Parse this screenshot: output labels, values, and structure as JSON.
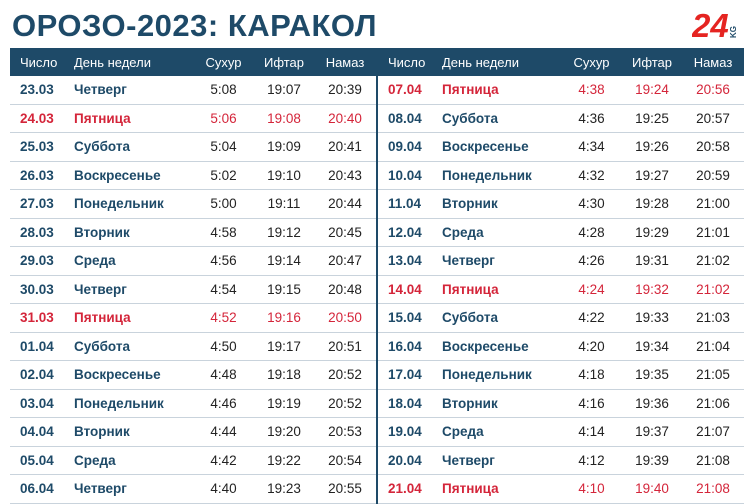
{
  "title": "ОРОЗО-2023: КАРАКОЛ",
  "logo": {
    "main": "24",
    "sub": "KG",
    "colors": {
      "red": "#e52421",
      "blue": "#1e4a68"
    }
  },
  "columns": {
    "date": "Число",
    "day": "День недели",
    "suhur": "Сухур",
    "iftar": "Ифтар",
    "namaz": "Намаз"
  },
  "colors": {
    "header": "#1e4a68",
    "friday": "#d4253a"
  },
  "left_rows": [
    {
      "date": "23.03",
      "day": "Четверг",
      "suhur": "5:08",
      "iftar": "19:07",
      "namaz": "20:39",
      "friday": false
    },
    {
      "date": "24.03",
      "day": "Пятница",
      "suhur": "5:06",
      "iftar": "19:08",
      "namaz": "20:40",
      "friday": true
    },
    {
      "date": "25.03",
      "day": "Суббота",
      "suhur": "5:04",
      "iftar": "19:09",
      "namaz": "20:41",
      "friday": false
    },
    {
      "date": "26.03",
      "day": "Воскресенье",
      "suhur": "5:02",
      "iftar": "19:10",
      "namaz": "20:43",
      "friday": false
    },
    {
      "date": "27.03",
      "day": "Понедельник",
      "suhur": "5:00",
      "iftar": "19:11",
      "namaz": "20:44",
      "friday": false
    },
    {
      "date": "28.03",
      "day": "Вторник",
      "suhur": "4:58",
      "iftar": "19:12",
      "namaz": "20:45",
      "friday": false
    },
    {
      "date": "29.03",
      "day": "Среда",
      "suhur": "4:56",
      "iftar": "19:14",
      "namaz": "20:47",
      "friday": false
    },
    {
      "date": "30.03",
      "day": "Четверг",
      "suhur": "4:54",
      "iftar": "19:15",
      "namaz": "20:48",
      "friday": false
    },
    {
      "date": "31.03",
      "day": "Пятница",
      "suhur": "4:52",
      "iftar": "19:16",
      "namaz": "20:50",
      "friday": true
    },
    {
      "date": "01.04",
      "day": "Суббота",
      "suhur": "4:50",
      "iftar": "19:17",
      "namaz": "20:51",
      "friday": false
    },
    {
      "date": "02.04",
      "day": "Воскресенье",
      "suhur": "4:48",
      "iftar": "19:18",
      "namaz": "20:52",
      "friday": false
    },
    {
      "date": "03.04",
      "day": "Понедельник",
      "suhur": "4:46",
      "iftar": "19:19",
      "namaz": "20:52",
      "friday": false
    },
    {
      "date": "04.04",
      "day": "Вторник",
      "suhur": "4:44",
      "iftar": "19:20",
      "namaz": "20:53",
      "friday": false
    },
    {
      "date": "05.04",
      "day": "Среда",
      "suhur": "4:42",
      "iftar": "19:22",
      "namaz": "20:54",
      "friday": false
    },
    {
      "date": "06.04",
      "day": "Четверг",
      "suhur": "4:40",
      "iftar": "19:23",
      "namaz": "20:55",
      "friday": false
    }
  ],
  "right_rows": [
    {
      "date": "07.04",
      "day": "Пятница",
      "suhur": "4:38",
      "iftar": "19:24",
      "namaz": "20:56",
      "friday": true
    },
    {
      "date": "08.04",
      "day": "Суббота",
      "suhur": "4:36",
      "iftar": "19:25",
      "namaz": "20:57",
      "friday": false
    },
    {
      "date": "09.04",
      "day": "Воскресенье",
      "suhur": "4:34",
      "iftar": "19:26",
      "namaz": "20:58",
      "friday": false
    },
    {
      "date": "10.04",
      "day": "Понедельник",
      "suhur": "4:32",
      "iftar": "19:27",
      "namaz": "20:59",
      "friday": false
    },
    {
      "date": "11.04",
      "day": "Вторник",
      "suhur": "4:30",
      "iftar": "19:28",
      "namaz": "21:00",
      "friday": false
    },
    {
      "date": "12.04",
      "day": "Среда",
      "suhur": "4:28",
      "iftar": "19:29",
      "namaz": "21:01",
      "friday": false
    },
    {
      "date": "13.04",
      "day": "Четверг",
      "suhur": "4:26",
      "iftar": "19:31",
      "namaz": "21:02",
      "friday": false
    },
    {
      "date": "14.04",
      "day": "Пятница",
      "suhur": "4:24",
      "iftar": "19:32",
      "namaz": "21:02",
      "friday": true
    },
    {
      "date": "15.04",
      "day": "Суббота",
      "suhur": "4:22",
      "iftar": "19:33",
      "namaz": "21:03",
      "friday": false
    },
    {
      "date": "16.04",
      "day": "Воскресенье",
      "suhur": "4:20",
      "iftar": "19:34",
      "namaz": "21:04",
      "friday": false
    },
    {
      "date": "17.04",
      "day": "Понедельник",
      "suhur": "4:18",
      "iftar": "19:35",
      "namaz": "21:05",
      "friday": false
    },
    {
      "date": "18.04",
      "day": "Вторник",
      "suhur": "4:16",
      "iftar": "19:36",
      "namaz": "21:06",
      "friday": false
    },
    {
      "date": "19.04",
      "day": "Среда",
      "suhur": "4:14",
      "iftar": "19:37",
      "namaz": "21:07",
      "friday": false
    },
    {
      "date": "20.04",
      "day": "Четверг",
      "suhur": "4:12",
      "iftar": "19:39",
      "namaz": "21:08",
      "friday": false
    },
    {
      "date": "21.04",
      "day": "Пятница",
      "suhur": "4:10",
      "iftar": "19:40",
      "namaz": "21:08",
      "friday": true
    }
  ]
}
